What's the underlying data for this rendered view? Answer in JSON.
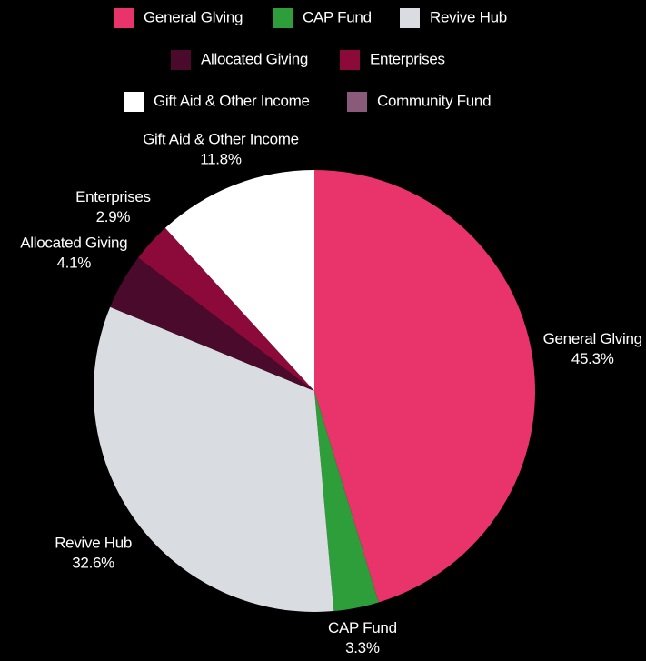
{
  "chart_data": {
    "type": "pie",
    "categories": [
      "General Glving",
      "CAP Fund",
      "Revive Hub",
      "Allocated Giving",
      "Enterprises",
      "Gift Aid & Other Income",
      "Community Fund"
    ],
    "values": [
      45.3,
      3.3,
      32.6,
      4.1,
      2.9,
      11.8,
      0
    ],
    "value_labels": [
      "45.3%",
      "3.3%",
      "32.6%",
      "4.1%",
      "2.9%",
      "11.8%",
      null
    ],
    "colors": [
      "#e8336b",
      "#2e9e3a",
      "#d9dce0",
      "#4a0a2c",
      "#8b0a3a",
      "#ffffff",
      "#8a5a7a"
    ],
    "legend": "top"
  }
}
